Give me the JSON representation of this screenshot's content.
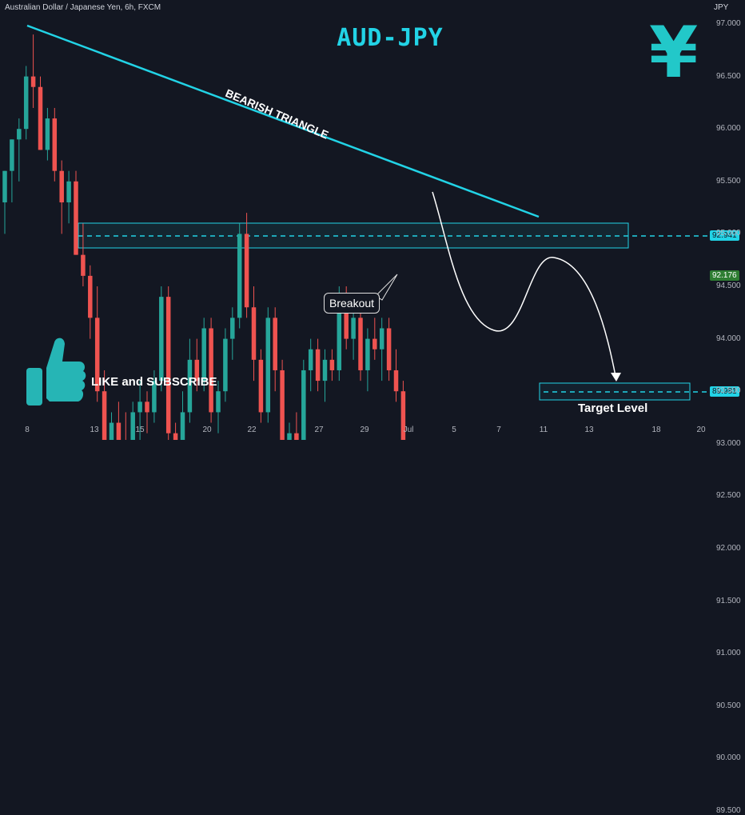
{
  "header": {
    "symbol_line": "Australian Dollar / Japanese Yen, 6h, FXCM",
    "currency": "JPY"
  },
  "title": "AUD-JPY",
  "yen_symbol": "¥",
  "pattern_label": "BEARISH TRIANGLE",
  "breakout_label": "Breakout",
  "like_label": "LIKE and SUBSCRIBE",
  "target_label": "Target Level",
  "colors": {
    "accent": "#22d3e6",
    "up": "#26a69a",
    "down": "#ef5350",
    "background": "#131722"
  },
  "chart_data": {
    "type": "candlestick",
    "y_ticks": [
      "97.000",
      "96.500",
      "96.000",
      "95.500",
      "95.000",
      "94.500",
      "94.000",
      "93.500",
      "93.000",
      "92.500",
      "92.000",
      "91.500",
      "91.000",
      "90.500",
      "90.000",
      "89.500"
    ],
    "x_ticks": [
      "8",
      "13",
      "15",
      "20",
      "22",
      "27",
      "29",
      "Jul",
      "5",
      "7",
      "11",
      "13",
      "18",
      "20"
    ],
    "ylim": [
      89.3,
      97.1
    ],
    "support_level": "92.941",
    "current_price": "92.176",
    "target_price": "89.981",
    "candles": [
      [
        95.3,
        95.6,
        95.0,
        95.6
      ],
      [
        95.6,
        95.9,
        95.3,
        95.9
      ],
      [
        95.9,
        96.1,
        95.5,
        96.0
      ],
      [
        96.0,
        96.6,
        95.9,
        96.5
      ],
      [
        96.5,
        96.9,
        96.2,
        96.4
      ],
      [
        96.4,
        96.5,
        95.8,
        95.8
      ],
      [
        95.8,
        96.2,
        95.7,
        96.1
      ],
      [
        96.1,
        96.2,
        95.5,
        95.6
      ],
      [
        95.6,
        95.7,
        95.0,
        95.3
      ],
      [
        95.3,
        95.6,
        95.1,
        95.5
      ],
      [
        95.5,
        95.6,
        94.8,
        94.8
      ],
      [
        94.8,
        95.1,
        94.5,
        94.6
      ],
      [
        94.6,
        94.7,
        94.0,
        94.2
      ],
      [
        94.2,
        94.5,
        93.4,
        93.5
      ],
      [
        93.5,
        93.7,
        92.7,
        92.9
      ],
      [
        92.9,
        93.3,
        92.6,
        93.2
      ],
      [
        93.2,
        93.4,
        92.9,
        93.0
      ],
      [
        93.0,
        93.3,
        92.5,
        92.7
      ],
      [
        92.7,
        93.4,
        92.6,
        93.3
      ],
      [
        93.3,
        93.6,
        93.0,
        93.4
      ],
      [
        93.4,
        93.5,
        93.1,
        93.3
      ],
      [
        93.3,
        93.7,
        93.2,
        93.6
      ],
      [
        93.6,
        94.5,
        93.5,
        94.4
      ],
      [
        94.4,
        94.5,
        93.0,
        93.1
      ],
      [
        93.1,
        93.2,
        92.3,
        92.5
      ],
      [
        92.5,
        93.5,
        92.2,
        93.3
      ],
      [
        93.3,
        94.0,
        93.2,
        93.8
      ],
      [
        93.8,
        94.0,
        93.5,
        93.6
      ],
      [
        93.6,
        94.2,
        93.5,
        94.1
      ],
      [
        94.1,
        94.2,
        93.2,
        93.3
      ],
      [
        93.3,
        93.6,
        93.1,
        93.5
      ],
      [
        93.5,
        94.1,
        93.4,
        94.0
      ],
      [
        94.0,
        94.3,
        93.8,
        94.2
      ],
      [
        94.2,
        95.1,
        94.1,
        95.0
      ],
      [
        95.0,
        95.2,
        94.2,
        94.3
      ],
      [
        94.3,
        94.5,
        93.6,
        93.8
      ],
      [
        93.8,
        93.9,
        93.2,
        93.3
      ],
      [
        93.3,
        94.3,
        93.2,
        94.2
      ],
      [
        94.2,
        94.3,
        93.5,
        93.7
      ],
      [
        93.7,
        93.8,
        92.9,
        93.0
      ],
      [
        93.0,
        93.2,
        92.9,
        93.1
      ],
      [
        93.1,
        93.3,
        92.8,
        93.0
      ],
      [
        93.0,
        93.8,
        92.9,
        93.7
      ],
      [
        93.7,
        94.0,
        93.5,
        93.9
      ],
      [
        93.9,
        94.0,
        93.5,
        93.6
      ],
      [
        93.6,
        93.9,
        93.4,
        93.8
      ],
      [
        93.8,
        93.9,
        93.6,
        93.7
      ],
      [
        93.7,
        94.5,
        93.6,
        94.4
      ],
      [
        94.4,
        94.5,
        93.9,
        94.0
      ],
      [
        94.0,
        94.3,
        93.8,
        94.2
      ],
      [
        94.2,
        94.3,
        93.6,
        93.7
      ],
      [
        93.7,
        94.1,
        93.5,
        94.0
      ],
      [
        94.0,
        94.2,
        93.8,
        93.9
      ],
      [
        93.9,
        94.2,
        93.6,
        94.1
      ],
      [
        94.1,
        94.2,
        93.6,
        93.7
      ],
      [
        93.7,
        93.9,
        93.4,
        93.5
      ],
      [
        93.5,
        93.6,
        92.8,
        92.9
      ],
      [
        92.9,
        93.0,
        92.2,
        92.3
      ],
      [
        92.3,
        92.4,
        91.5,
        91.6
      ],
      [
        91.6,
        92.3,
        91.5,
        92.2
      ]
    ]
  }
}
